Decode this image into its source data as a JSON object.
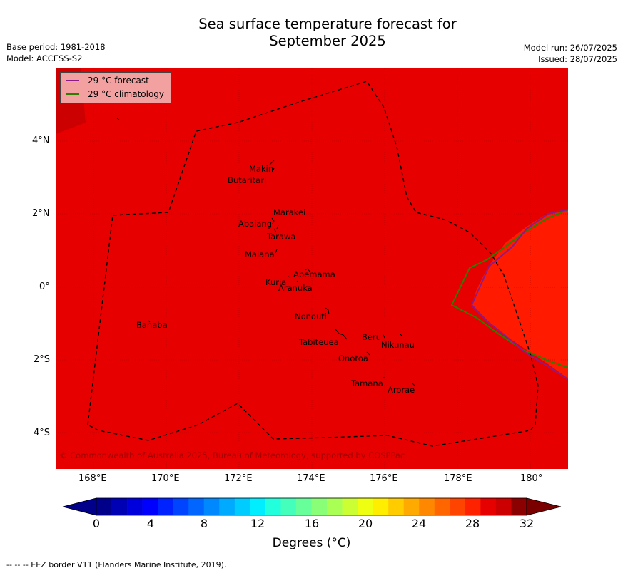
{
  "header": {
    "title_line1": "Sea surface temperature forecast for",
    "title_line2": "September 2025",
    "left_line1": "Base period: 1981-2018",
    "left_line2": "Model: ACCESS-S2",
    "right_line1": "Model run: 26/07/2025",
    "right_line2": "Issued: 28/07/2025"
  },
  "legend": {
    "forecast_label": "29 °C  forecast",
    "forecast_color": "#8b1a8b",
    "climatology_label": "29 °C  climatology",
    "climatology_color": "#2e7d00"
  },
  "map": {
    "background_color": "#e60000",
    "warm_region_color": "#ff1a00",
    "x_ticks": [
      "168°E",
      "170°E",
      "172°E",
      "174°E",
      "176°E",
      "178°E",
      "180°"
    ],
    "y_ticks": [
      "4°N",
      "2°N",
      "0°",
      "2°S",
      "4°S"
    ],
    "islands": [
      "Makin",
      "Butaritari",
      "Marakei",
      "Abaiang",
      "Tarawa",
      "Maiana",
      "Abemama",
      "Kuria",
      "Aranuka",
      "Banaba",
      "Nonouti",
      "Beru",
      "Tabiteuea",
      "Nikunau",
      "Onotoa",
      "Tamana",
      "Arorae"
    ],
    "copyright": "© Commonwealth of Australia 2025, Bureau of Meteorology, supported by COSPPac"
  },
  "colorbar": {
    "tick_labels": [
      "0",
      "4",
      "8",
      "12",
      "16",
      "20",
      "24",
      "28",
      "32"
    ],
    "title": "Degrees ($^\\circ$C)",
    "title_display": "Degrees (°C)",
    "colors": [
      "#00008b",
      "#0000b4",
      "#0000dc",
      "#0000ff",
      "#0022ff",
      "#0044ff",
      "#0066ff",
      "#0088ff",
      "#00aaff",
      "#00ccff",
      "#00eeff",
      "#22ffdd",
      "#44ffbb",
      "#66ff99",
      "#88ff77",
      "#aaff55",
      "#ccff33",
      "#eeff11",
      "#ffee00",
      "#ffcc00",
      "#ffaa00",
      "#ff8800",
      "#ff6600",
      "#ff4400",
      "#ff2200",
      "#e60000",
      "#cc0000",
      "#8b0000"
    ],
    "low_color": "#00008b",
    "high_color": "#7a0000"
  },
  "footer": {
    "text": "--  --  -- EEZ border V11 (Flanders Marine Institute, 2019)."
  }
}
